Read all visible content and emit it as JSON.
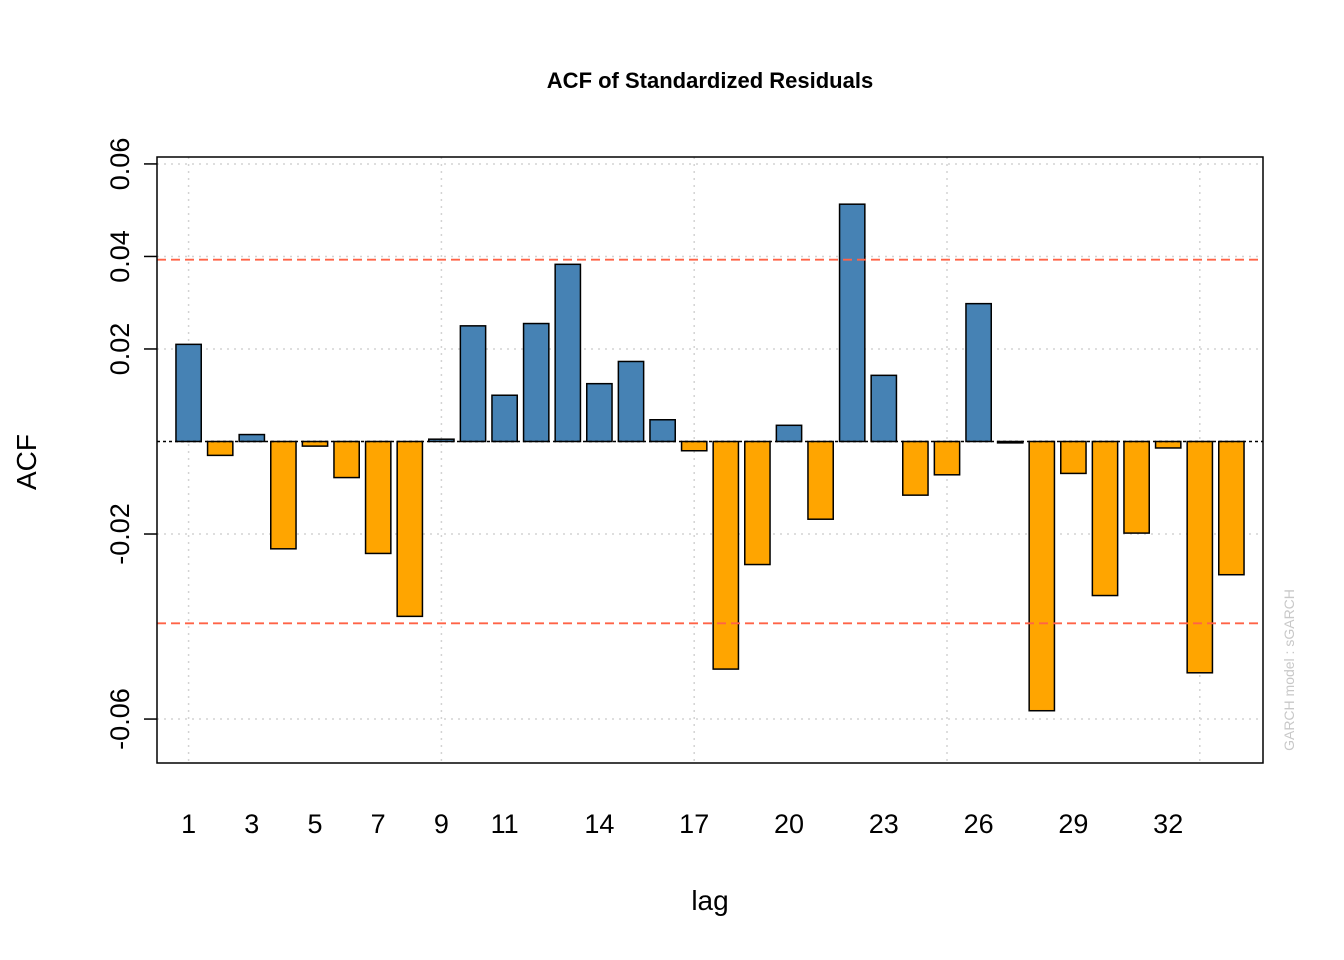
{
  "chart_data": {
    "type": "bar",
    "title": "ACF of Standardized Residuals",
    "xlabel": "lag",
    "ylabel": "ACF",
    "footnote": "GARCH model : sGARCH",
    "xlim": [
      0,
      35
    ],
    "ylim": [
      -0.0695,
      0.0615
    ],
    "yticks": [
      {
        "value": 0.06,
        "label": "0.06"
      },
      {
        "value": 0.04,
        "label": "0.04"
      },
      {
        "value": 0.02,
        "label": "0.02"
      },
      {
        "value": -0.02,
        "label": "-0.02"
      },
      {
        "value": -0.06,
        "label": "-0.06"
      }
    ],
    "x_tick_labels": [
      1,
      3,
      5,
      7,
      9,
      11,
      14,
      17,
      20,
      23,
      26,
      29,
      32
    ],
    "lags": [
      1,
      2,
      3,
      4,
      5,
      6,
      7,
      8,
      9,
      10,
      11,
      12,
      13,
      14,
      15,
      16,
      17,
      18,
      19,
      20,
      21,
      22,
      23,
      24,
      25,
      26,
      27,
      28,
      29,
      30,
      31,
      32,
      33,
      34
    ],
    "values": [
      0.021,
      -0.003,
      0.0015,
      -0.0232,
      -0.001,
      -0.0078,
      -0.0242,
      -0.0378,
      0.0005,
      0.025,
      0.01,
      0.0255,
      0.0383,
      0.0125,
      0.0173,
      0.0047,
      -0.002,
      -0.0492,
      -0.0266,
      0.0035,
      -0.0168,
      0.0513,
      0.0143,
      -0.0116,
      -0.0072,
      0.0298,
      -0.0003,
      -0.0582,
      -0.0069,
      -0.0333,
      -0.0198,
      -0.0014,
      -0.05,
      -0.0288
    ],
    "confidence_bound": 0.0393,
    "colors": {
      "positive": "#4682B4",
      "negative": "#FFA500",
      "confidence": "#FF6347",
      "grid": "#D3D3D3"
    },
    "grid": true,
    "legend": "none"
  }
}
